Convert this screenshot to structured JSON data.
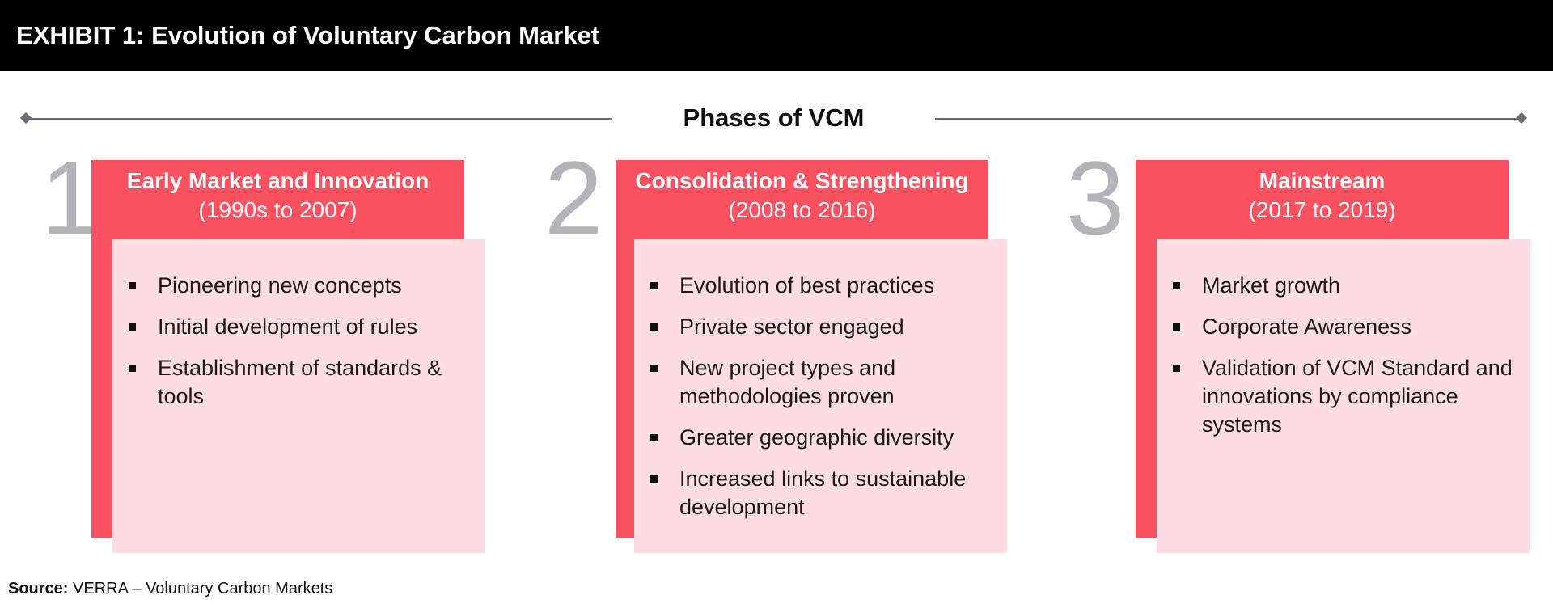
{
  "header": {
    "title": "EXHIBIT 1: Evolution of Voluntary Carbon Market"
  },
  "timeline": {
    "title": "Phases of VCM"
  },
  "phases": [
    {
      "number": "1",
      "name": "Early Market and Innovation",
      "years": "(1990s to 2007)",
      "bullets": [
        "Pioneering new concepts",
        "Initial development of rules",
        "Establishment of standards & tools"
      ]
    },
    {
      "number": "2",
      "name": "Consolidation & Strengthening",
      "years": "(2008 to 2016)",
      "bullets": [
        "Evolution of best practices",
        "Private sector engaged",
        "New project types and methodologies proven",
        "Greater geographic diversity",
        "Increased links to sustainable development"
      ]
    },
    {
      "number": "3",
      "name": "Mainstream",
      "years": "(2017 to 2019)",
      "bullets": [
        "Market growth",
        "Corporate Awareness",
        "Validation of VCM Standard and innovations by compliance systems"
      ]
    }
  ],
  "source": {
    "label": "Source:",
    "text": "VERRA – Voluntary Carbon Markets"
  },
  "colors": {
    "header_bg": "#000000",
    "phase_red": "#f9515f",
    "phase_pink": "#fedde2",
    "phase_number": "#b3b3b9",
    "timeline": "#6b6b73"
  }
}
